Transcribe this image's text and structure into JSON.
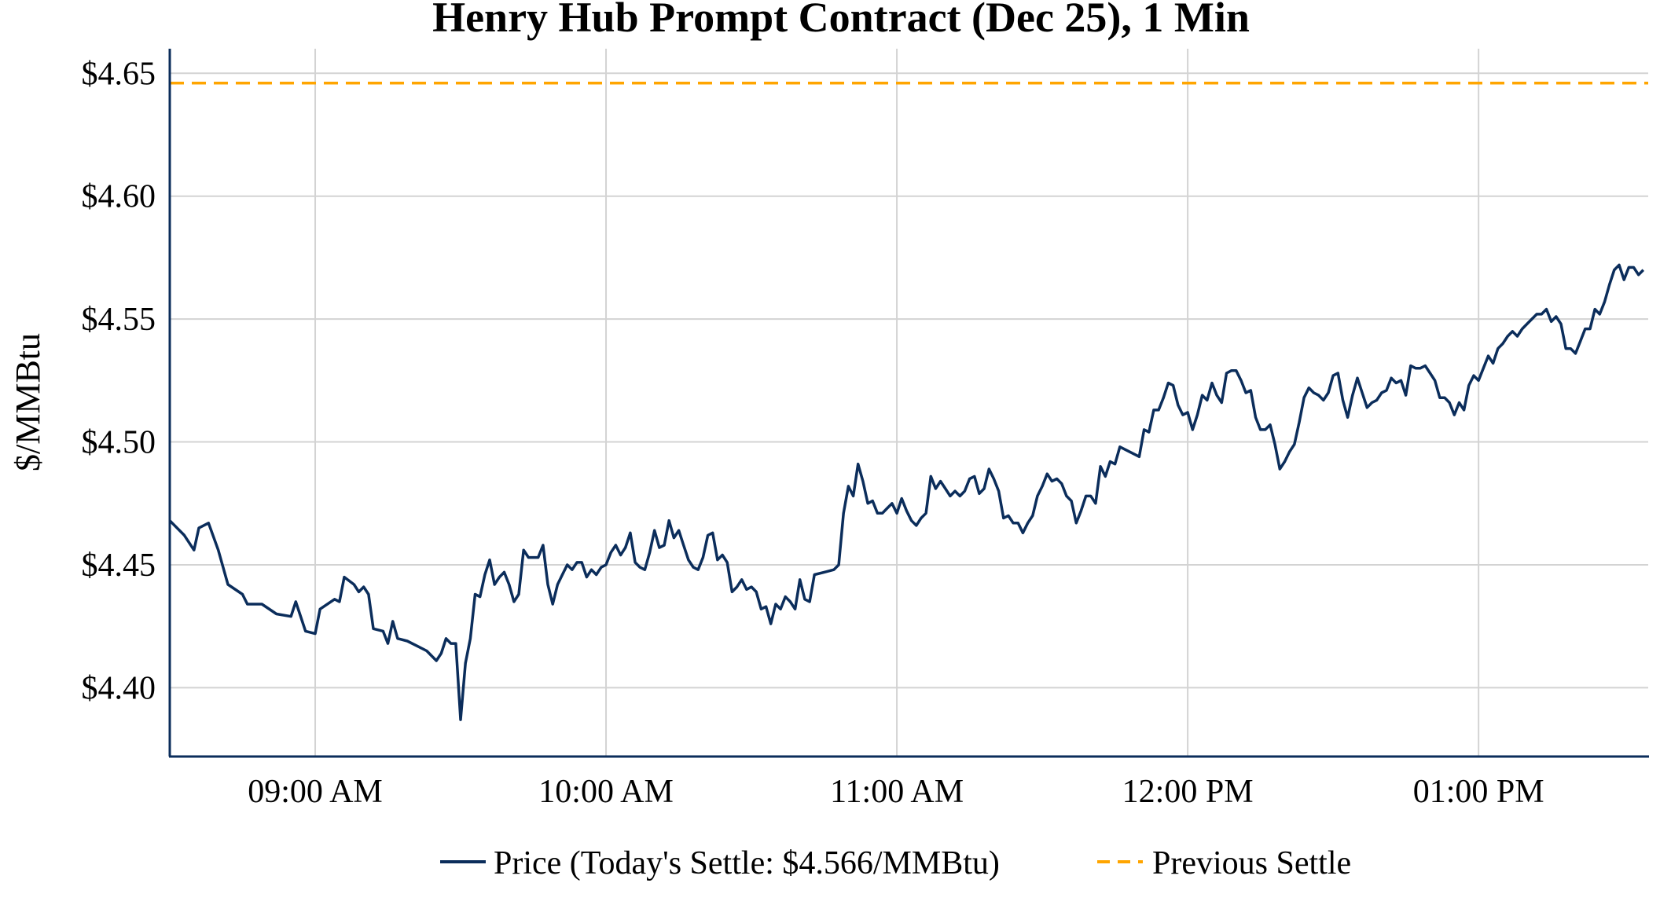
{
  "chart_data": {
    "type": "line",
    "title": "Henry Hub Prompt Contract (Dec 25), 1 Min",
    "xlabel": "",
    "ylabel": "$/MMBtu",
    "xlim": [
      "08:30",
      "13:35"
    ],
    "ylim": [
      4.372,
      4.66
    ],
    "grid": true,
    "legend_placement": "bottom",
    "x_ticks": [
      {
        "time": "09:00",
        "label": "09:00 AM"
      },
      {
        "time": "10:00",
        "label": "10:00 AM"
      },
      {
        "time": "11:00",
        "label": "11:00 AM"
      },
      {
        "time": "12:00",
        "label": "12:00 PM"
      },
      {
        "time": "13:00",
        "label": "01:00 PM"
      }
    ],
    "y_ticks": [
      {
        "value": 4.4,
        "label": "$4.40"
      },
      {
        "value": 4.45,
        "label": "$4.45"
      },
      {
        "value": 4.5,
        "label": "$4.50"
      },
      {
        "value": 4.55,
        "label": "$4.55"
      },
      {
        "value": 4.6,
        "label": "$4.60"
      },
      {
        "value": 4.65,
        "label": "$4.65"
      }
    ],
    "series": [
      {
        "name": "Price (Today's Settle: $4.566/MMBtu)",
        "color": "#0b2d5b",
        "style": "solid",
        "time": [
          "08:30",
          "08:33",
          "08:35",
          "08:36",
          "08:38",
          "08:40",
          "08:42",
          "08:45",
          "08:46",
          "08:49",
          "08:52",
          "08:55",
          "08:56",
          "08:58",
          "09:00",
          "09:01",
          "09:04",
          "09:05",
          "09:06",
          "09:08",
          "09:09",
          "09:10",
          "09:11",
          "09:12",
          "09:14",
          "09:15",
          "09:16",
          "09:17",
          "09:19",
          "09:21",
          "09:23",
          "09:25",
          "09:26",
          "09:27",
          "09:28",
          "09:29",
          "09:30",
          "09:31",
          "09:32",
          "09:33",
          "09:34",
          "09:35",
          "09:36",
          "09:37",
          "09:38",
          "09:39",
          "09:40",
          "09:41",
          "09:42",
          "09:43",
          "09:44",
          "09:45",
          "09:46",
          "09:47",
          "09:48",
          "09:49",
          "09:50",
          "09:51",
          "09:52",
          "09:53",
          "09:54",
          "09:55",
          "09:56",
          "09:57",
          "09:58",
          "09:59",
          "10:00",
          "10:01",
          "10:02",
          "10:03",
          "10:04",
          "10:05",
          "10:06",
          "10:07",
          "10:08",
          "10:09",
          "10:10",
          "10:11",
          "10:12",
          "10:13",
          "10:14",
          "10:15",
          "10:16",
          "10:17",
          "10:18",
          "10:19",
          "10:20",
          "10:21",
          "10:22",
          "10:23",
          "10:24",
          "10:25",
          "10:26",
          "10:27",
          "10:28",
          "10:29",
          "10:30",
          "10:31",
          "10:32",
          "10:33",
          "10:34",
          "10:35",
          "10:36",
          "10:37",
          "10:38",
          "10:39",
          "10:40",
          "10:41",
          "10:42",
          "10:43",
          "10:45",
          "10:47",
          "10:48",
          "10:49",
          "10:50",
          "10:51",
          "10:52",
          "10:53",
          "10:54",
          "10:55",
          "10:56",
          "10:57",
          "10:58",
          "10:59",
          "11:00",
          "11:01",
          "11:02",
          "11:03",
          "11:04",
          "11:05",
          "11:06",
          "11:07",
          "11:08",
          "11:09",
          "11:10",
          "11:11",
          "11:12",
          "11:13",
          "11:14",
          "11:15",
          "11:16",
          "11:17",
          "11:18",
          "11:19",
          "11:20",
          "11:21",
          "11:22",
          "11:23",
          "11:24",
          "11:25",
          "11:26",
          "11:27",
          "11:28",
          "11:29",
          "11:30",
          "11:31",
          "11:32",
          "11:33",
          "11:34",
          "11:35",
          "11:36",
          "11:37",
          "11:38",
          "11:39",
          "11:40",
          "11:41",
          "11:42",
          "11:43",
          "11:44",
          "11:45",
          "11:46",
          "11:48",
          "11:49",
          "11:50",
          "11:51",
          "11:52",
          "11:53",
          "11:54",
          "11:55",
          "11:56",
          "11:57",
          "11:58",
          "11:59",
          "12:00",
          "12:01",
          "12:02",
          "12:03",
          "12:04",
          "12:05",
          "12:06",
          "12:07",
          "12:08",
          "12:09",
          "12:10",
          "12:11",
          "12:12",
          "12:13",
          "12:14",
          "12:15",
          "12:16",
          "12:17",
          "12:18",
          "12:19",
          "12:20",
          "12:21",
          "12:22",
          "12:23",
          "12:24",
          "12:25",
          "12:26",
          "12:27",
          "12:28",
          "12:29",
          "12:30",
          "12:31",
          "12:32",
          "12:33",
          "12:34",
          "12:35",
          "12:36",
          "12:37",
          "12:38",
          "12:39",
          "12:40",
          "12:41",
          "12:42",
          "12:43",
          "12:44",
          "12:45",
          "12:46",
          "12:47",
          "12:48",
          "12:49",
          "12:50",
          "12:51",
          "12:52",
          "12:53",
          "12:54",
          "12:55",
          "12:56",
          "12:57",
          "12:58",
          "12:59",
          "13:00",
          "13:01",
          "13:02",
          "13:03",
          "13:04",
          "13:05",
          "13:06",
          "13:07",
          "13:08",
          "13:09",
          "13:10",
          "13:11",
          "13:12",
          "13:13",
          "13:14",
          "13:15",
          "13:16",
          "13:17",
          "13:18",
          "13:19",
          "13:20",
          "13:21",
          "13:22",
          "13:23",
          "13:24",
          "13:25",
          "13:26",
          "13:27",
          "13:28",
          "13:29",
          "13:30",
          "13:31",
          "13:32",
          "13:33",
          "13:34"
        ],
        "price": [
          4.468,
          4.462,
          4.456,
          4.465,
          4.467,
          4.456,
          4.442,
          4.438,
          4.434,
          4.434,
          4.43,
          4.429,
          4.435,
          4.423,
          4.422,
          4.432,
          4.436,
          4.435,
          4.445,
          4.442,
          4.439,
          4.441,
          4.438,
          4.424,
          4.423,
          4.418,
          4.427,
          4.42,
          4.419,
          4.417,
          4.415,
          4.411,
          4.414,
          4.42,
          4.418,
          4.418,
          4.387,
          4.41,
          4.42,
          4.438,
          4.437,
          4.446,
          4.452,
          4.442,
          4.445,
          4.447,
          4.442,
          4.435,
          4.438,
          4.456,
          4.453,
          4.453,
          4.453,
          4.458,
          4.442,
          4.434,
          4.442,
          4.446,
          4.45,
          4.448,
          4.451,
          4.451,
          4.445,
          4.448,
          4.446,
          4.449,
          4.45,
          4.455,
          4.458,
          4.454,
          4.457,
          4.463,
          4.451,
          4.449,
          4.448,
          4.455,
          4.464,
          4.457,
          4.458,
          4.468,
          4.461,
          4.464,
          4.458,
          4.452,
          4.449,
          4.448,
          4.453,
          4.462,
          4.463,
          4.452,
          4.454,
          4.451,
          4.439,
          4.441,
          4.444,
          4.44,
          4.441,
          4.439,
          4.432,
          4.433,
          4.426,
          4.434,
          4.432,
          4.437,
          4.435,
          4.432,
          4.444,
          4.436,
          4.435,
          4.446,
          4.447,
          4.448,
          4.45,
          4.471,
          4.482,
          4.478,
          4.491,
          4.484,
          4.475,
          4.476,
          4.471,
          4.471,
          4.473,
          4.475,
          4.471,
          4.477,
          4.472,
          4.468,
          4.466,
          4.469,
          4.471,
          4.486,
          4.481,
          4.484,
          4.481,
          4.478,
          4.48,
          4.478,
          4.48,
          4.485,
          4.486,
          4.479,
          4.481,
          4.489,
          4.485,
          4.48,
          4.469,
          4.47,
          4.467,
          4.467,
          4.463,
          4.467,
          4.47,
          4.478,
          4.482,
          4.487,
          4.484,
          4.485,
          4.483,
          4.478,
          4.476,
          4.467,
          4.472,
          4.478,
          4.478,
          4.475,
          4.49,
          4.486,
          4.492,
          4.491,
          4.498,
          4.496,
          4.495,
          4.494,
          4.505,
          4.504,
          4.513,
          4.513,
          4.518,
          4.524,
          4.523,
          4.515,
          4.511,
          4.512,
          4.505,
          4.511,
          4.519,
          4.517,
          4.524,
          4.519,
          4.516,
          4.528,
          4.529,
          4.529,
          4.525,
          4.52,
          4.521,
          4.51,
          4.505,
          4.505,
          4.507,
          4.499,
          4.489,
          4.492,
          4.496,
          4.499,
          4.508,
          4.518,
          4.522,
          4.52,
          4.519,
          4.517,
          4.52,
          4.527,
          4.528,
          4.517,
          4.51,
          4.519,
          4.526,
          4.52,
          4.514,
          4.516,
          4.517,
          4.52,
          4.521,
          4.526,
          4.524,
          4.525,
          4.519,
          4.531,
          4.53,
          4.53,
          4.531,
          4.528,
          4.525,
          4.518,
          4.518,
          4.516,
          4.511,
          4.516,
          4.513,
          4.523,
          4.527,
          4.525,
          4.53,
          4.535,
          4.532,
          4.538,
          4.54,
          4.543,
          4.545,
          4.543,
          4.546,
          4.548,
          4.55,
          4.552,
          4.552,
          4.554,
          4.549,
          4.551,
          4.548,
          4.538,
          4.538,
          4.536,
          4.541,
          4.546,
          4.546,
          4.554,
          4.552,
          4.557,
          4.564,
          4.57,
          4.572,
          4.566,
          4.571,
          4.571,
          4.568,
          4.57
        ]
      },
      {
        "name": "Previous Settle",
        "color": "#ffa500",
        "style": "dashed",
        "value": 4.646
      }
    ]
  }
}
